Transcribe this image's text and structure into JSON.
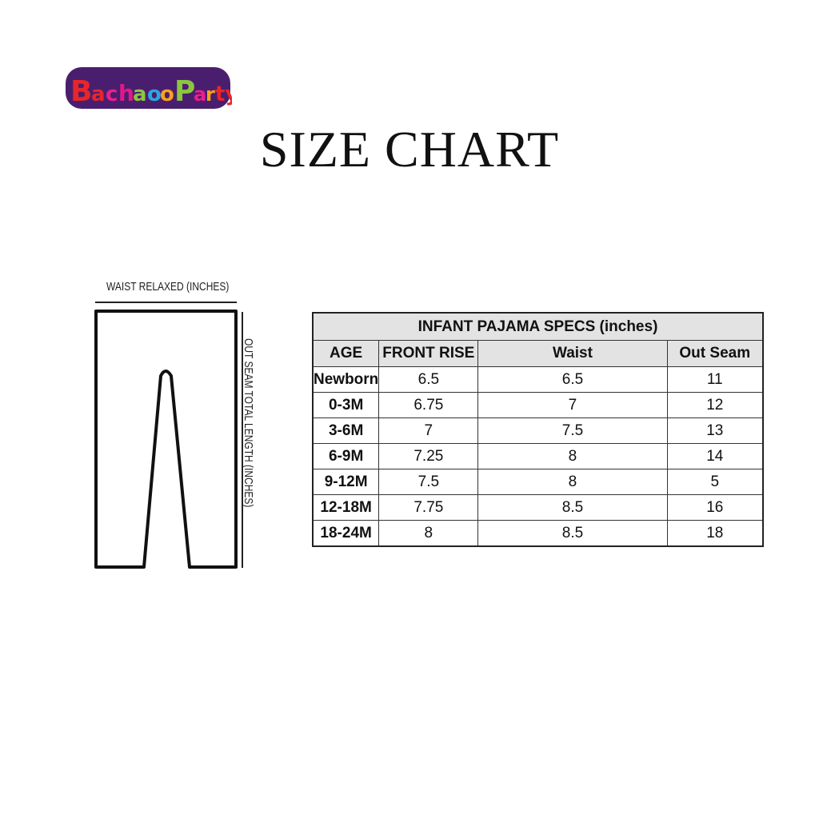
{
  "logo": {
    "text": "Bachaoo Party"
  },
  "title": "SIZE CHART",
  "diagram": {
    "waist_label": "WAIST RELAXED (INCHES)",
    "outseam_label": "OUT SEAM TOTAL LENGTH (INCHES)"
  },
  "table": {
    "caption": "INFANT PAJAMA SPECS (inches)",
    "headers": [
      "AGE",
      "FRONT RISE",
      "Waist",
      "Out Seam"
    ],
    "rows": [
      [
        "Newborn",
        "6.5",
        "6.5",
        "11"
      ],
      [
        "0-3M",
        "6.75",
        "7",
        "12"
      ],
      [
        "3-6M",
        "7",
        "7.5",
        "13"
      ],
      [
        "6-9M",
        "7.25",
        "8",
        "14"
      ],
      [
        "9-12M",
        "7.5",
        "8",
        "5"
      ],
      [
        "12-18M",
        "7.75",
        "8.5",
        "16"
      ],
      [
        "18-24M",
        "8",
        "8.5",
        "18"
      ]
    ]
  }
}
